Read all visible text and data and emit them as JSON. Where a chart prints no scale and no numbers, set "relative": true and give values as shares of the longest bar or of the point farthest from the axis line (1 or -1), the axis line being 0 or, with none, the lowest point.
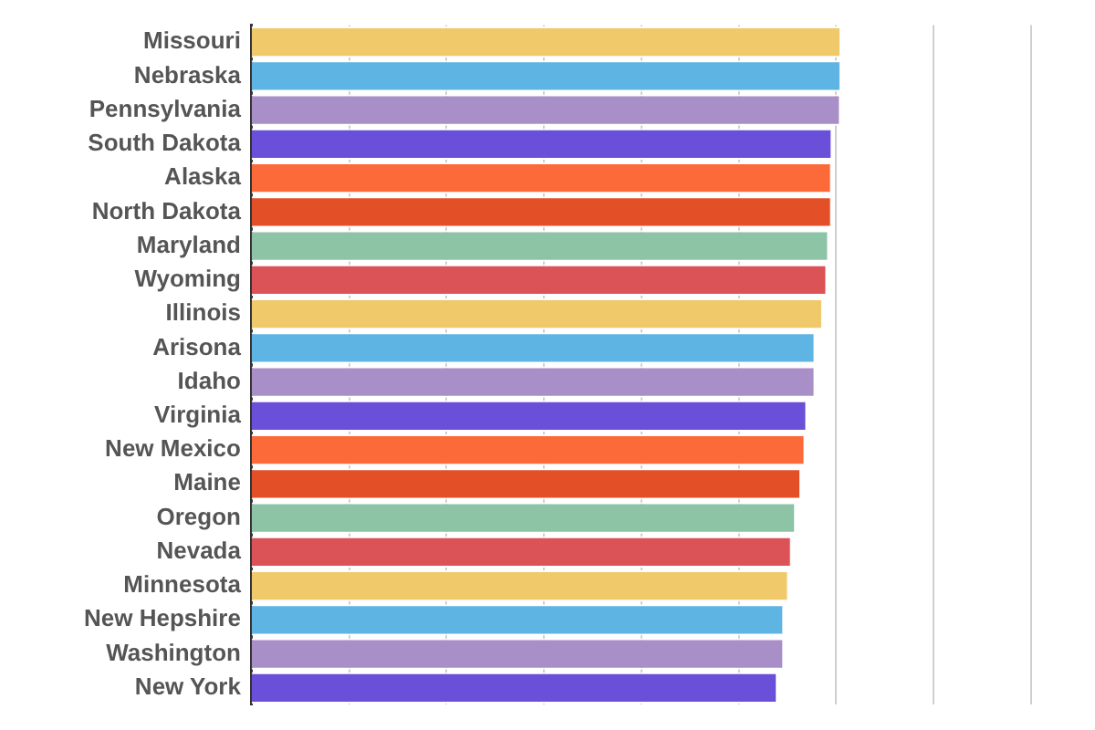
{
  "chart_data": {
    "type": "bar",
    "orientation": "horizontal",
    "relative": true,
    "grid": "x",
    "categories": [
      "Missouri",
      "Nebraska",
      "Pennsylvania",
      "South Dakota",
      "Alaska",
      "North Dakota",
      "Maryland",
      "Wyoming",
      "Illinois",
      "Arisona",
      "Idaho",
      "Virginia",
      "New Mexico",
      "Maine",
      "Oregon",
      "Nevada",
      "Minnesota",
      "New Hepshire",
      "Washington",
      "New York"
    ],
    "values": [
      1,
      1,
      0.999,
      0.985,
      0.984,
      0.984,
      0.979,
      0.976,
      0.969,
      0.956,
      0.956,
      0.942,
      0.939,
      0.932,
      0.923,
      0.916,
      0.911,
      0.903,
      0.903,
      0.892
    ],
    "colors": [
      "#efc96a",
      "#5eb5e4",
      "#a98fc8",
      "#6a4fd8",
      "#fd6a3a",
      "#e34f26",
      "#8ec4a6",
      "#dc5357",
      "#efc96a",
      "#5eb5e4",
      "#a98fc8",
      "#6a4fd8",
      "#fd6a3a",
      "#e34f26",
      "#8ec4a6",
      "#dc5357",
      "#efc96a",
      "#5eb5e4",
      "#a98fc8",
      "#6a4fd8"
    ]
  }
}
